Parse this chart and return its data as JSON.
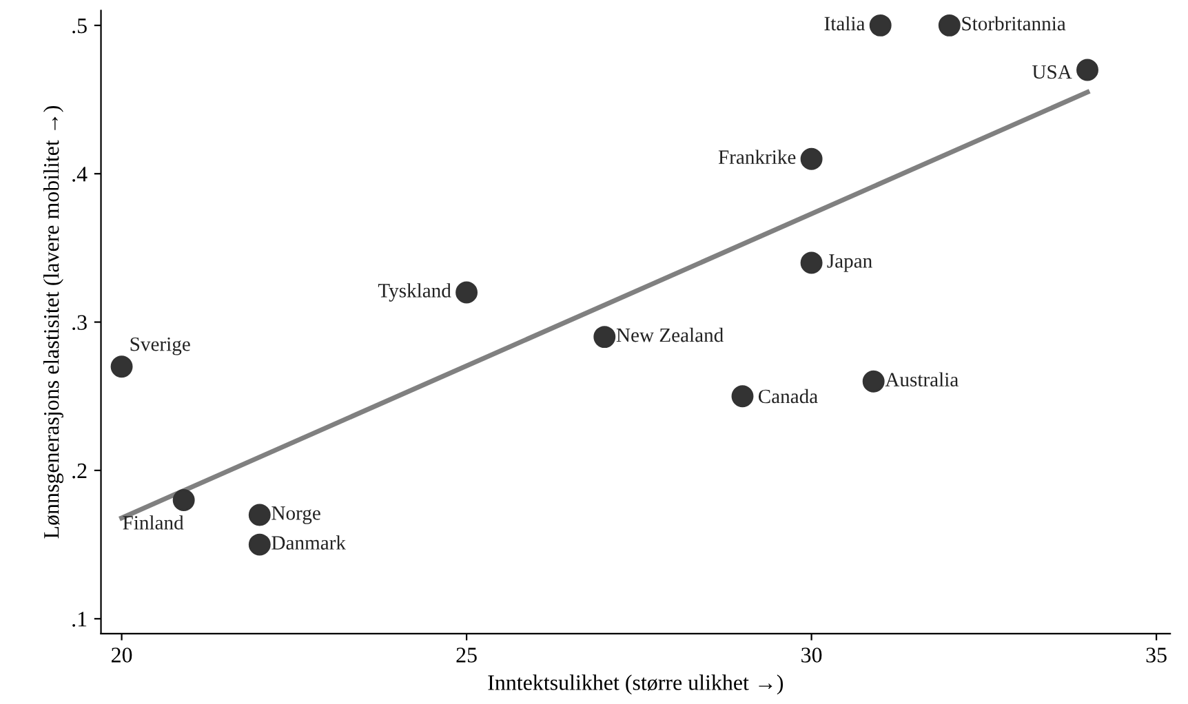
{
  "chart_data": {
    "type": "scatter",
    "xlabel": "Inntektsulikhet (større ulikhet →)",
    "ylabel": "Lønnsgenerasjons elastisitet (lavere mobilitet →)",
    "series": [
      {
        "color": "#333333",
        "marker": "circle",
        "x": [
          20,
          20.9,
          22.0,
          22.0,
          25,
          27.0,
          29.0,
          30,
          30.9,
          30,
          31.0,
          32.0,
          34.0
        ],
        "values": [
          0.27,
          0.18,
          0.17,
          0.15,
          0.32,
          0.29,
          0.25,
          0.34,
          0.26,
          0.41,
          0.5,
          0.5,
          0.47
        ]
      },
      {
        "type": "line",
        "color": "#808080",
        "marker": "none",
        "line_style": "solid",
        "x": [
          20,
          34
        ],
        "values": [
          0.168,
          0.455
        ]
      }
    ],
    "annotations": [
      {
        "text": "Sverige",
        "x": 20,
        "y": 0.27
      },
      {
        "text": "Finland",
        "x": 20.9,
        "y": 0.18
      },
      {
        "text": "Norge",
        "x": 22.0,
        "y": 0.17
      },
      {
        "text": "Danmark",
        "x": 22.0,
        "y": 0.15
      },
      {
        "text": "Tyskland",
        "x": 25,
        "y": 0.32
      },
      {
        "text": "New Zealand",
        "x": 27.0,
        "y": 0.29
      },
      {
        "text": "Canada",
        "x": 29.0,
        "y": 0.25
      },
      {
        "text": "Japan",
        "x": 30,
        "y": 0.34
      },
      {
        "text": "Australia",
        "x": 30.9,
        "y": 0.26
      },
      {
        "text": "Frankrike",
        "x": 30,
        "y": 0.41
      },
      {
        "text": "Italia",
        "x": 31.0,
        "y": 0.5
      },
      {
        "text": "Storbritannia",
        "x": 32.0,
        "y": 0.5
      },
      {
        "text": "USA",
        "x": 34.0,
        "y": 0.47
      }
    ],
    "xlim": [
      19.7,
      35.2
    ],
    "ylim": [
      0.09,
      0.51
    ],
    "xticks": [
      20,
      25,
      30,
      35
    ],
    "yticks": [
      {
        "value": 0.1,
        "label": ".1"
      },
      {
        "value": 0.2,
        "label": ".2"
      },
      {
        "value": 0.3,
        "label": ".3"
      },
      {
        "value": 0.4,
        "label": ".4"
      },
      {
        "value": 0.5,
        "label": ".5"
      }
    ],
    "grid": false
  }
}
